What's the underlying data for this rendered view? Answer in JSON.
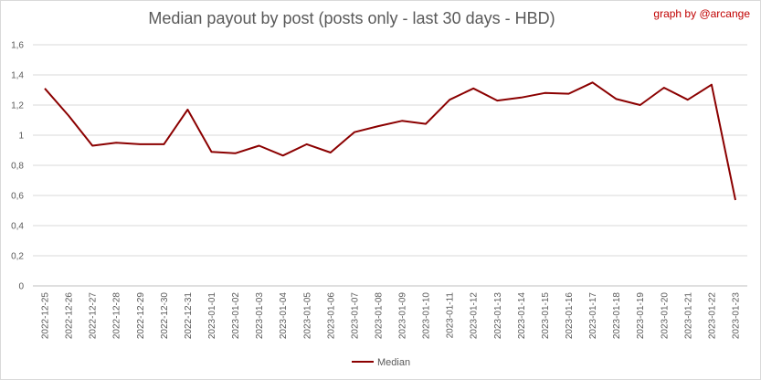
{
  "header": {
    "title": "Median payout by post (posts only - last 30 days - HBD)",
    "credit": "graph by @arcange"
  },
  "colors": {
    "series": "#8b0000",
    "grid": "#d9d9d9",
    "credit": "#c00000"
  },
  "chart_data": {
    "type": "line",
    "title": "Median payout by post (posts only - last 30 days - HBD)",
    "xlabel": "",
    "ylabel": "",
    "ylim": [
      0,
      1.6
    ],
    "yticks": [
      "0",
      "0,2",
      "0,4",
      "0,6",
      "0,8",
      "1",
      "1,2",
      "1,4",
      "1,6"
    ],
    "grid": true,
    "legend_position": "bottom",
    "x": [
      "2022-12-25",
      "2022-12-26",
      "2022-12-27",
      "2022-12-28",
      "2022-12-29",
      "2022-12-30",
      "2022-12-31",
      "2023-01-01",
      "2023-01-02",
      "2023-01-03",
      "2023-01-04",
      "2023-01-05",
      "2023-01-06",
      "2023-01-07",
      "2023-01-08",
      "2023-01-09",
      "2023-01-10",
      "2023-01-11",
      "2023-01-12",
      "2023-01-13",
      "2023-01-14",
      "2023-01-15",
      "2023-01-16",
      "2023-01-17",
      "2023-01-18",
      "2023-01-19",
      "2023-01-20",
      "2023-01-21",
      "2023-01-22",
      "2023-01-23"
    ],
    "series": [
      {
        "name": "Median",
        "values": [
          1.31,
          1.13,
          0.93,
          0.95,
          0.94,
          0.94,
          1.17,
          0.89,
          0.88,
          0.93,
          0.865,
          0.94,
          0.885,
          1.02,
          1.06,
          1.095,
          1.075,
          1.235,
          1.31,
          1.23,
          1.25,
          1.28,
          1.275,
          1.35,
          1.24,
          1.2,
          1.315,
          1.235,
          1.335,
          0.57
        ]
      }
    ]
  }
}
